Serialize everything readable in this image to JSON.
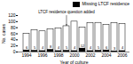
{
  "chart_data": {
    "type": "bar",
    "x_label": "Year of culture",
    "y_label": "No. cases",
    "categories": [
      "1994",
      null,
      "1996",
      null,
      "1998",
      null,
      "2000",
      null,
      "2002",
      null,
      "2004",
      null,
      "2006"
    ],
    "values": [
      60,
      72,
      68,
      75,
      78,
      85,
      100,
      80,
      95,
      96,
      90,
      95,
      92
    ],
    "color": "#ffffff",
    "series": [
      {
        "name": "Missing LTCF residence",
        "color": "#000000",
        "values": [
          6,
          5,
          4,
          8,
          4,
          5,
          4,
          12,
          4,
          5,
          6,
          3,
          4
        ]
      }
    ],
    "data_labels": true,
    "legend": "top-right",
    "annotations": [
      {
        "text": "LTCF residence question added",
        "index": 5
      }
    ],
    "ylim": [
      0,
      120
    ],
    "yticks": [
      0,
      20,
      40,
      60,
      80,
      100,
      120
    ]
  }
}
